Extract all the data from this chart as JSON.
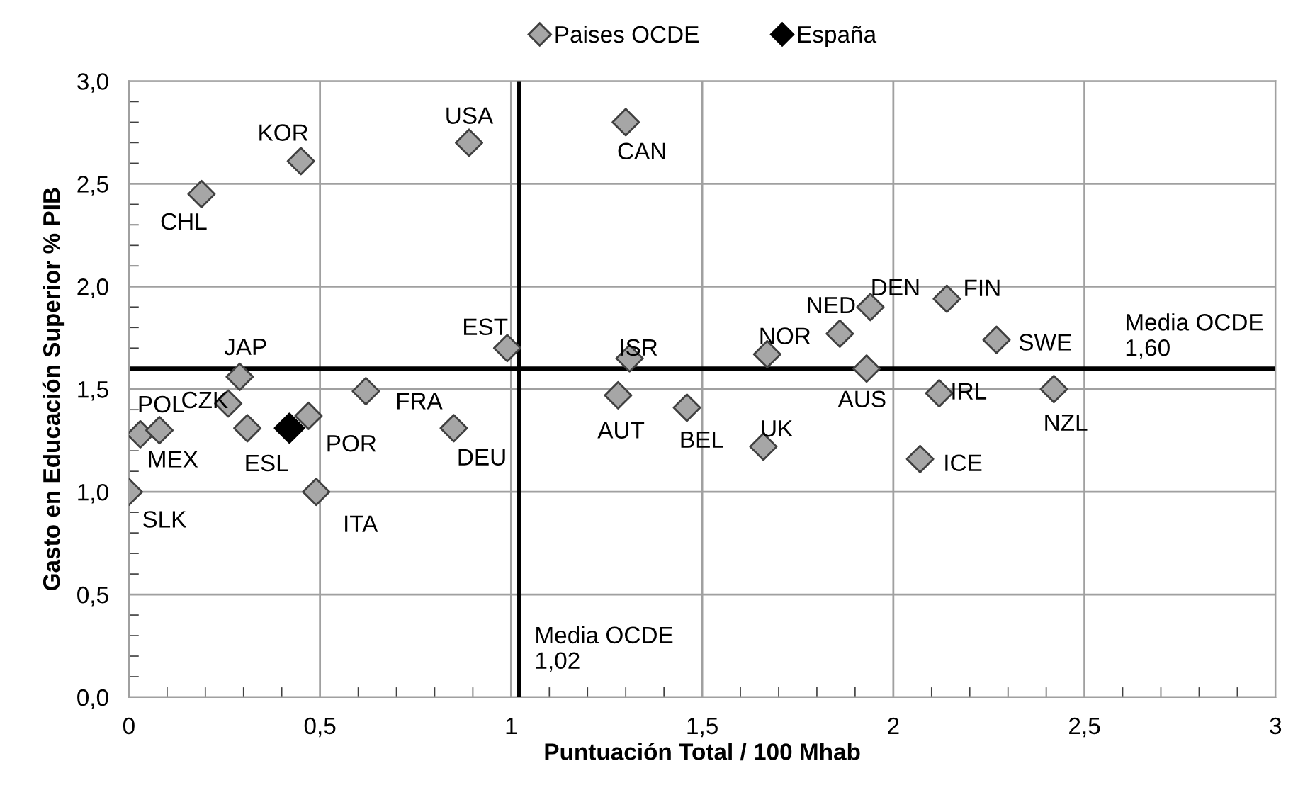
{
  "chart_data": {
    "type": "scatter",
    "xlabel": "Puntuación Total / 100 Mhab",
    "ylabel": "Gasto en Educación Superior % PIB",
    "xlim": [
      0,
      3
    ],
    "ylim": [
      0,
      3
    ],
    "xticks": [
      0,
      {
        "value": 0.5,
        "label": "0,5"
      },
      1,
      {
        "value": 1.5,
        "label": "1,5"
      },
      2,
      {
        "value": 2.5,
        "label": "2,5"
      },
      3
    ],
    "yticks": [
      {
        "value": 0,
        "label": "0,0"
      },
      {
        "value": 0.5,
        "label": "0,5"
      },
      {
        "value": 1,
        "label": "1,0"
      },
      {
        "value": 1.5,
        "label": "1,5"
      },
      {
        "value": 2,
        "label": "2,0"
      },
      {
        "value": 2.5,
        "label": "2,5"
      },
      {
        "value": 3,
        "label": "3,0"
      }
    ],
    "grid": true,
    "legend": "top",
    "marker": "diamond",
    "series": [
      {
        "name": "Paises OCDE",
        "color": "#a6a6a6",
        "x": [
          0.19,
          0.45,
          0.89,
          1.3,
          0.99,
          0.29,
          1.31,
          0.03,
          0.26,
          0.08,
          0.31,
          0.47,
          0.62,
          0.49,
          0.0,
          0.85,
          1.28,
          1.46,
          1.66,
          2.07,
          2.12,
          2.42,
          1.67,
          1.86,
          1.94,
          2.14,
          2.27,
          1.93
        ],
        "values": [
          2.45,
          2.61,
          2.7,
          2.8,
          1.7,
          1.56,
          1.65,
          1.28,
          1.43,
          1.3,
          1.31,
          1.37,
          1.49,
          1.0,
          1.0,
          1.31,
          1.47,
          1.41,
          1.22,
          1.16,
          1.48,
          1.5,
          1.67,
          1.77,
          1.9,
          1.94,
          1.74,
          1.6
        ]
      },
      {
        "name": "España",
        "color": "#000000",
        "x": [
          0.42
        ],
        "values": [
          1.31
        ]
      }
    ],
    "ref_lines": [
      {
        "axis": "x",
        "value": 1.02,
        "label": "Media OCDE\n1,02",
        "color": "#000000"
      },
      {
        "axis": "y",
        "value": 1.6,
        "label": "Media OCDE\n1,60",
        "color": "#000000"
      }
    ],
    "annotations": [
      {
        "text": "CHL",
        "x": 0.19,
        "y": 2.45
      },
      {
        "text": "KOR",
        "x": 0.45,
        "y": 2.61
      },
      {
        "text": "USA",
        "x": 0.89,
        "y": 2.7
      },
      {
        "text": "CAN",
        "x": 1.3,
        "y": 2.8
      },
      {
        "text": "EST",
        "x": 0.99,
        "y": 1.7
      },
      {
        "text": "JAP",
        "x": 0.29,
        "y": 1.56
      },
      {
        "text": "ISR",
        "x": 1.31,
        "y": 1.65
      },
      {
        "text": "POL",
        "x": 0.03,
        "y": 1.28
      },
      {
        "text": "CZK",
        "x": 0.26,
        "y": 1.43
      },
      {
        "text": "MEX",
        "x": 0.08,
        "y": 1.3
      },
      {
        "text": "ESL",
        "x": 0.31,
        "y": 1.31
      },
      {
        "text": "POR",
        "x": 0.47,
        "y": 1.37
      },
      {
        "text": "FRA",
        "x": 0.62,
        "y": 1.49
      },
      {
        "text": "ITA",
        "x": 0.49,
        "y": 1.0
      },
      {
        "text": "SLK",
        "x": 0.0,
        "y": 1.0
      },
      {
        "text": "DEU",
        "x": 0.85,
        "y": 1.31
      },
      {
        "text": "AUT",
        "x": 1.28,
        "y": 1.47
      },
      {
        "text": "BEL",
        "x": 1.46,
        "y": 1.41
      },
      {
        "text": "UK",
        "x": 1.66,
        "y": 1.22
      },
      {
        "text": "ICE",
        "x": 2.07,
        "y": 1.16
      },
      {
        "text": "IRL",
        "x": 2.12,
        "y": 1.48
      },
      {
        "text": "NZL",
        "x": 2.42,
        "y": 1.5
      },
      {
        "text": "NOR",
        "x": 1.67,
        "y": 1.67
      },
      {
        "text": "NED",
        "x": 1.86,
        "y": 1.77
      },
      {
        "text": "DEN",
        "x": 1.94,
        "y": 1.9
      },
      {
        "text": "FIN",
        "x": 2.14,
        "y": 1.94
      },
      {
        "text": "SWE",
        "x": 2.27,
        "y": 1.74
      },
      {
        "text": "AUS",
        "x": 1.93,
        "y": 1.6
      }
    ]
  }
}
